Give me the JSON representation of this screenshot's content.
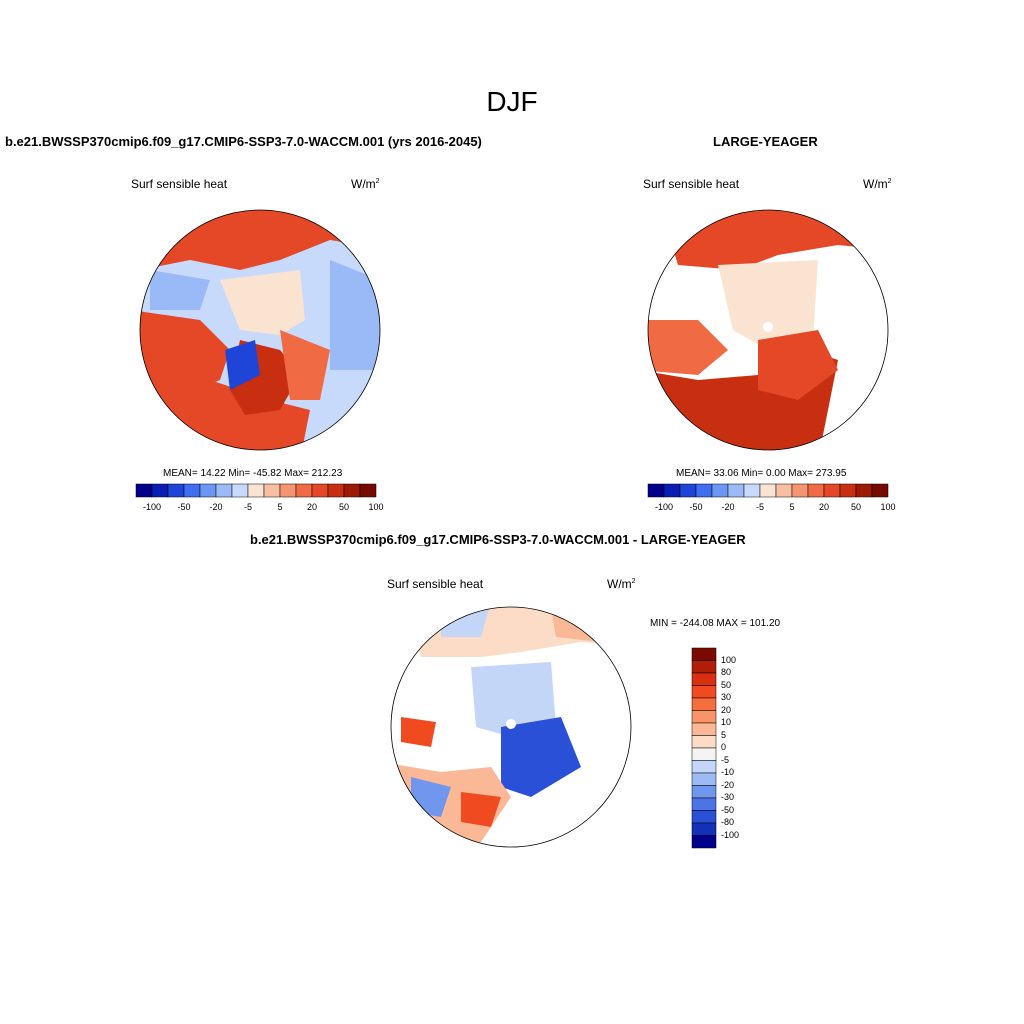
{
  "figure": {
    "season": "DJF",
    "variable": "Surf sensible heat",
    "units_base": "W/m",
    "units_exp": "2"
  },
  "panels": [
    {
      "id": "model",
      "title": "b.e21.BWSSP370cmip6.f09_g17.CMIP6-SSP3-7.0-WACCM.001 (yrs 2016-2045)",
      "stats": "MEAN=  14.22  Min= -45.82  Max= 212.23",
      "mean": 14.22,
      "min": -45.82,
      "max": 212.23
    },
    {
      "id": "obs",
      "title": "LARGE-YEAGER",
      "stats": "MEAN=  33.06  Min=   0.00  Max= 273.95",
      "mean": 33.06,
      "min": 0.0,
      "max": 273.95
    },
    {
      "id": "diff",
      "title": "b.e21.BWSSP370cmip6.f09_g17.CMIP6-SSP3-7.0-WACCM.001 - LARGE-YEAGER",
      "stats": "MIN = -244.08 MAX = 101.20",
      "min": -244.08,
      "max": 101.2
    }
  ],
  "colorbar_horizontal": {
    "labels": [
      "-100",
      "-50",
      "-20",
      "-5",
      "5",
      "20",
      "50",
      "100"
    ],
    "colors": [
      "#00008b",
      "#0a1eb4",
      "#1f45d8",
      "#3e6ff0",
      "#6a96f4",
      "#9ab9f7",
      "#c8dafb",
      "#fbe3d2",
      "#f8bea2",
      "#f59470",
      "#f06a44",
      "#e44826",
      "#c82f10",
      "#9e1a06",
      "#740a00"
    ]
  },
  "colorbar_vertical": {
    "labels": [
      "100",
      "80",
      "50",
      "30",
      "20",
      "10",
      "5",
      "0",
      "-5",
      "-10",
      "-20",
      "-30",
      "-50",
      "-80",
      "-100"
    ],
    "colors": [
      "#7a0a00",
      "#b01e08",
      "#d83010",
      "#f04a20",
      "#f56e3e",
      "#f89468",
      "#fab896",
      "#fcdcc6",
      "#f4f4f4",
      "#c4d6f8",
      "#9cbaf4",
      "#7096ee",
      "#4c74e6",
      "#2a50d8",
      "#1230b8",
      "#00008b"
    ]
  }
}
